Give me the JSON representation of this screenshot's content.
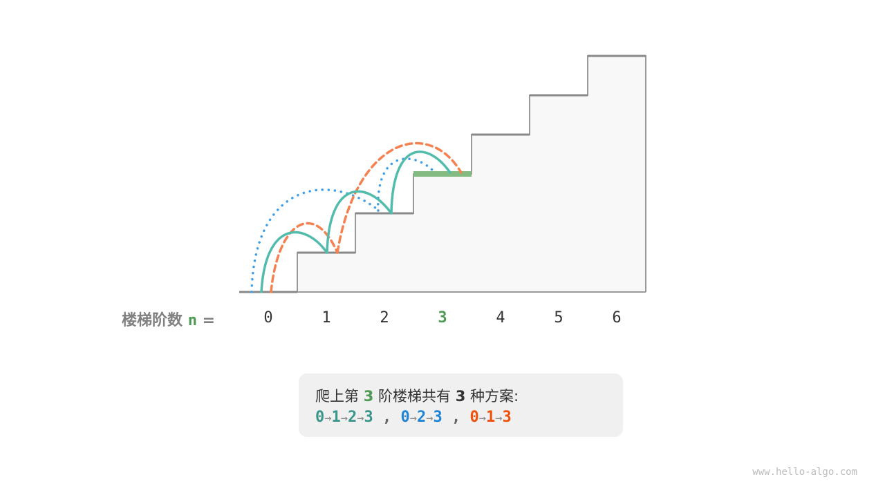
{
  "stairs": {
    "labels": [
      "0",
      "1",
      "2",
      "3",
      "4",
      "5",
      "6"
    ],
    "target": "3",
    "highlight_color": "#83bb83"
  },
  "axis_caption": {
    "text": "楼梯阶数",
    "var": "n",
    "eq": "="
  },
  "summary": {
    "prefix": "爬上第",
    "n": "3",
    "middle": "阶楼梯共有",
    "count": "3",
    "suffix": "种方案:"
  },
  "paths": [
    {
      "steps": [
        "0",
        "1",
        "2",
        "3"
      ],
      "color": "#3a968a",
      "line_color": "#52bcac",
      "style": "solid"
    },
    {
      "steps": [
        "0",
        "2",
        "3"
      ],
      "color": "#1f84d6",
      "line_color": "#3f9ee8",
      "style": "dotted"
    },
    {
      "steps": [
        "0",
        "1",
        "3"
      ],
      "color": "#f0500a",
      "line_color": "#f58151",
      "style": "dashed"
    }
  ],
  "separator": ",",
  "arrow": "→",
  "watermark": "www.hello-algo.com"
}
